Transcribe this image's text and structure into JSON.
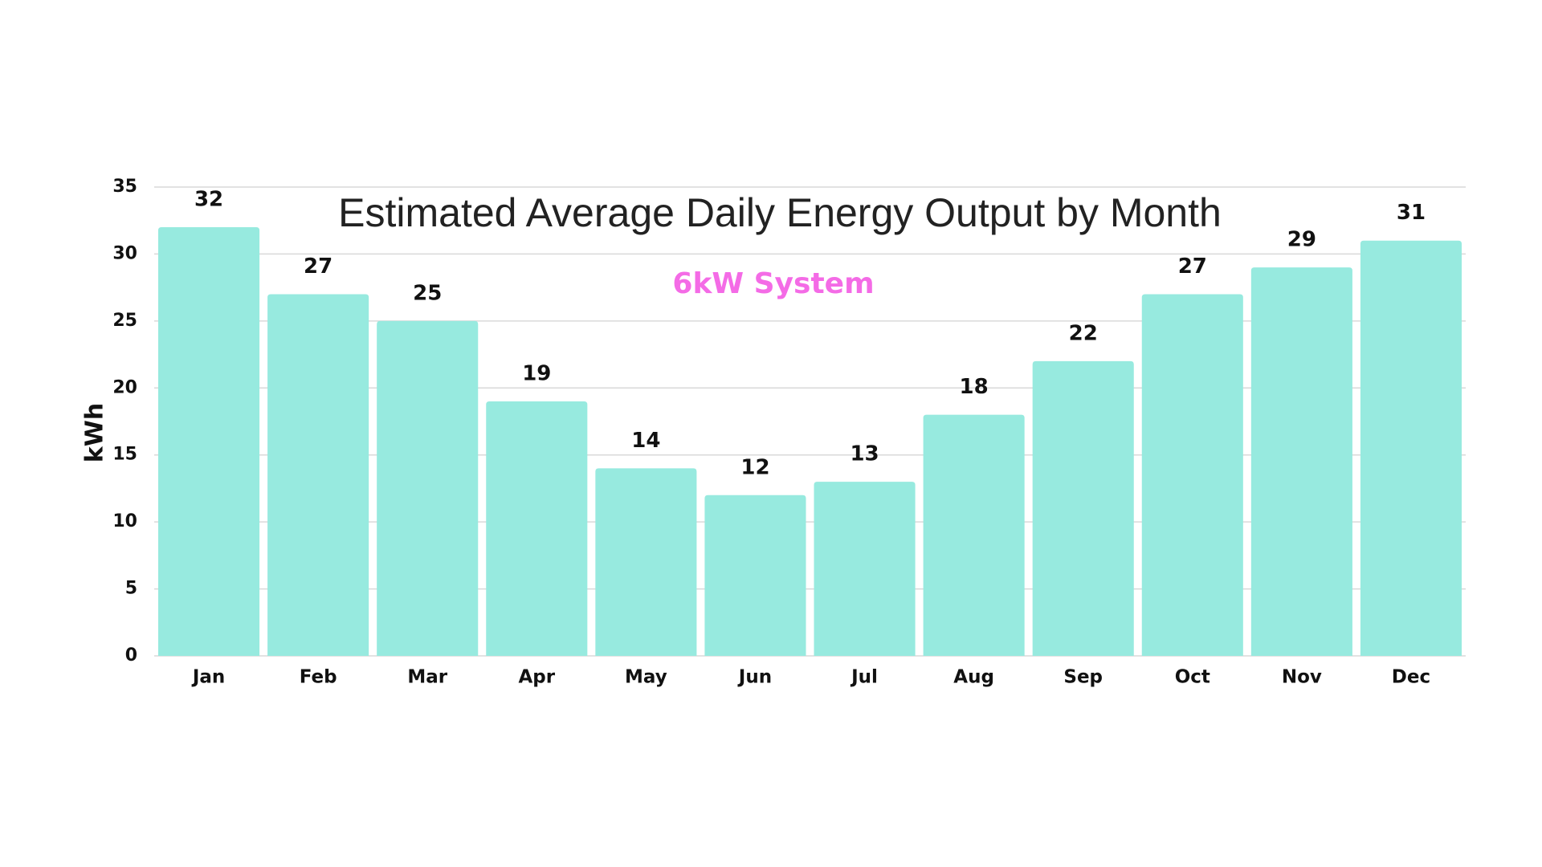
{
  "chart_data": {
    "type": "bar",
    "title": "Estimated Average Daily Energy Output by Month",
    "subtitle": "6kW System",
    "y_label": "kWh",
    "categories": [
      "Jan",
      "Feb",
      "Mar",
      "Apr",
      "May",
      "Jun",
      "Jul",
      "Aug",
      "Sep",
      "Oct",
      "Nov",
      "Dec"
    ],
    "values": [
      32,
      27,
      25,
      19,
      14,
      12,
      13,
      18,
      22,
      27,
      29,
      31
    ],
    "color": "#97eadf",
    "subtitle_color": "#f46be6",
    "ylim": [
      0,
      35
    ],
    "yticks": [
      0,
      5,
      10,
      15,
      20,
      25,
      30,
      35
    ],
    "grid": true
  }
}
